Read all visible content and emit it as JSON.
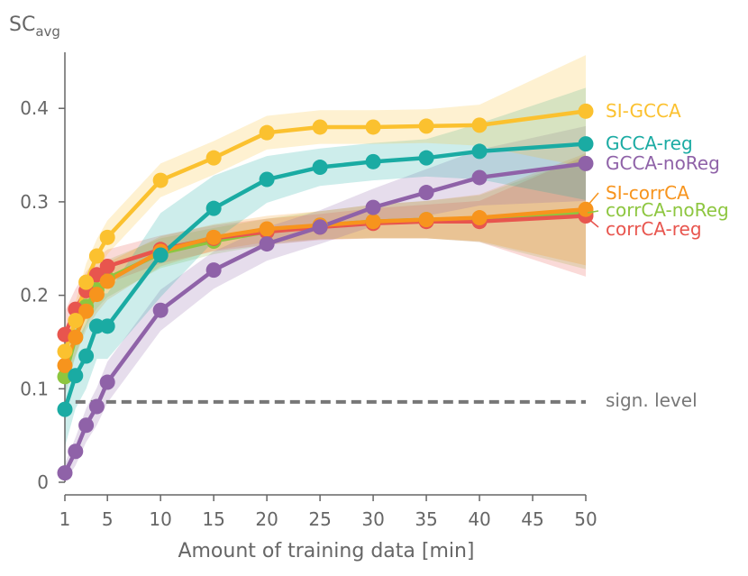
{
  "chart_data": {
    "type": "line",
    "title": "",
    "ylabel_main": "SC",
    "ylabel_sub": "avg",
    "xlabel": "Amount of training data [min]",
    "x_ticks": [
      1,
      5,
      10,
      15,
      20,
      25,
      30,
      35,
      40,
      45,
      50
    ],
    "y_ticks": [
      0,
      0.1,
      0.2,
      0.3,
      0.4
    ],
    "y_tick_labels": [
      "0",
      "0.1",
      "0.2",
      "0.3",
      "0.4"
    ],
    "xlim": [
      1,
      50
    ],
    "ylim": [
      0,
      0.46
    ],
    "grid": false,
    "legend_placement": "right, inline at line ends",
    "series": [
      {
        "name": "corrCA-noReg",
        "color": "#8dc63f",
        "x": [
          1,
          2,
          3,
          4,
          5,
          10,
          15,
          20,
          25,
          30,
          35,
          40,
          50
        ],
        "values": [
          0.113,
          0.155,
          0.188,
          0.206,
          0.218,
          0.245,
          0.258,
          0.268,
          0.275,
          0.279,
          0.281,
          0.282,
          0.288
        ],
        "band": [
          0.02,
          0.02,
          0.02,
          0.02,
          0.02,
          0.016,
          0.014,
          0.014,
          0.015,
          0.018,
          0.02,
          0.025,
          0.06
        ]
      },
      {
        "name": "corrCA-reg",
        "color": "#e8554e",
        "x": [
          1,
          2,
          3,
          4,
          5,
          10,
          15,
          20,
          25,
          30,
          35,
          40,
          50
        ],
        "values": [
          0.158,
          0.185,
          0.205,
          0.222,
          0.231,
          0.249,
          0.261,
          0.268,
          0.273,
          0.277,
          0.279,
          0.279,
          0.285
        ],
        "band": [
          0.025,
          0.022,
          0.02,
          0.018,
          0.018,
          0.015,
          0.014,
          0.014,
          0.014,
          0.016,
          0.018,
          0.022,
          0.065
        ]
      },
      {
        "name": "SI-corrCA",
        "color": "#f7941d",
        "x": [
          1,
          2,
          3,
          4,
          5,
          10,
          15,
          20,
          25,
          30,
          35,
          40,
          50
        ],
        "values": [
          0.125,
          0.155,
          0.183,
          0.201,
          0.215,
          0.247,
          0.262,
          0.271,
          0.275,
          0.279,
          0.281,
          0.283,
          0.292
        ],
        "band": [
          0.02,
          0.02,
          0.02,
          0.02,
          0.02,
          0.016,
          0.014,
          0.014,
          0.015,
          0.018,
          0.02,
          0.025,
          0.06
        ]
      },
      {
        "name": "GCCA-noReg",
        "color": "#8f62a8",
        "x": [
          1,
          2,
          3,
          4,
          5,
          10,
          15,
          20,
          25,
          30,
          35,
          40,
          50
        ],
        "values": [
          0.01,
          0.033,
          0.061,
          0.081,
          0.107,
          0.184,
          0.227,
          0.255,
          0.273,
          0.294,
          0.31,
          0.326,
          0.341
        ],
        "band": [
          0.01,
          0.015,
          0.018,
          0.02,
          0.022,
          0.022,
          0.02,
          0.018,
          0.018,
          0.02,
          0.025,
          0.03,
          0.04
        ]
      },
      {
        "name": "GCCA-reg",
        "color": "#1aaba3",
        "x": [
          1,
          2,
          3,
          4,
          5,
          10,
          15,
          20,
          25,
          30,
          35,
          40,
          50
        ],
        "values": [
          0.078,
          0.114,
          0.135,
          0.167,
          0.167,
          0.243,
          0.293,
          0.324,
          0.337,
          0.343,
          0.347,
          0.354,
          0.362
        ],
        "band": [
          0.04,
          0.035,
          0.035,
          0.035,
          0.035,
          0.045,
          0.035,
          0.025,
          0.02,
          0.02,
          0.02,
          0.03,
          0.06
        ]
      },
      {
        "name": "SI-GCCA",
        "color": "#fbc12f",
        "x": [
          1,
          2,
          3,
          4,
          5,
          10,
          15,
          20,
          25,
          30,
          35,
          40,
          50
        ],
        "values": [
          0.14,
          0.173,
          0.214,
          0.242,
          0.262,
          0.323,
          0.347,
          0.374,
          0.38,
          0.38,
          0.381,
          0.382,
          0.397
        ],
        "band": [
          0.02,
          0.02,
          0.02,
          0.018,
          0.018,
          0.018,
          0.018,
          0.018,
          0.018,
          0.018,
          0.018,
          0.022,
          0.06
        ]
      }
    ],
    "reference_line": {
      "name": "sign. level",
      "value": 0.086,
      "color": "#777777",
      "style": "dashed"
    },
    "legend": [
      {
        "label": "SI-GCCA",
        "color": "#fbc12f"
      },
      {
        "label": "GCCA-reg",
        "color": "#1aaba3"
      },
      {
        "label": "GCCA-noReg",
        "color": "#8f62a8"
      },
      {
        "label": "SI-corrCA",
        "color": "#f7941d"
      },
      {
        "label": "corrCA-noReg",
        "color": "#8dc63f"
      },
      {
        "label": "corrCA-reg",
        "color": "#e8554e"
      },
      {
        "label": "sign. level",
        "color": "#777777"
      }
    ],
    "axis_color": "#666666"
  }
}
